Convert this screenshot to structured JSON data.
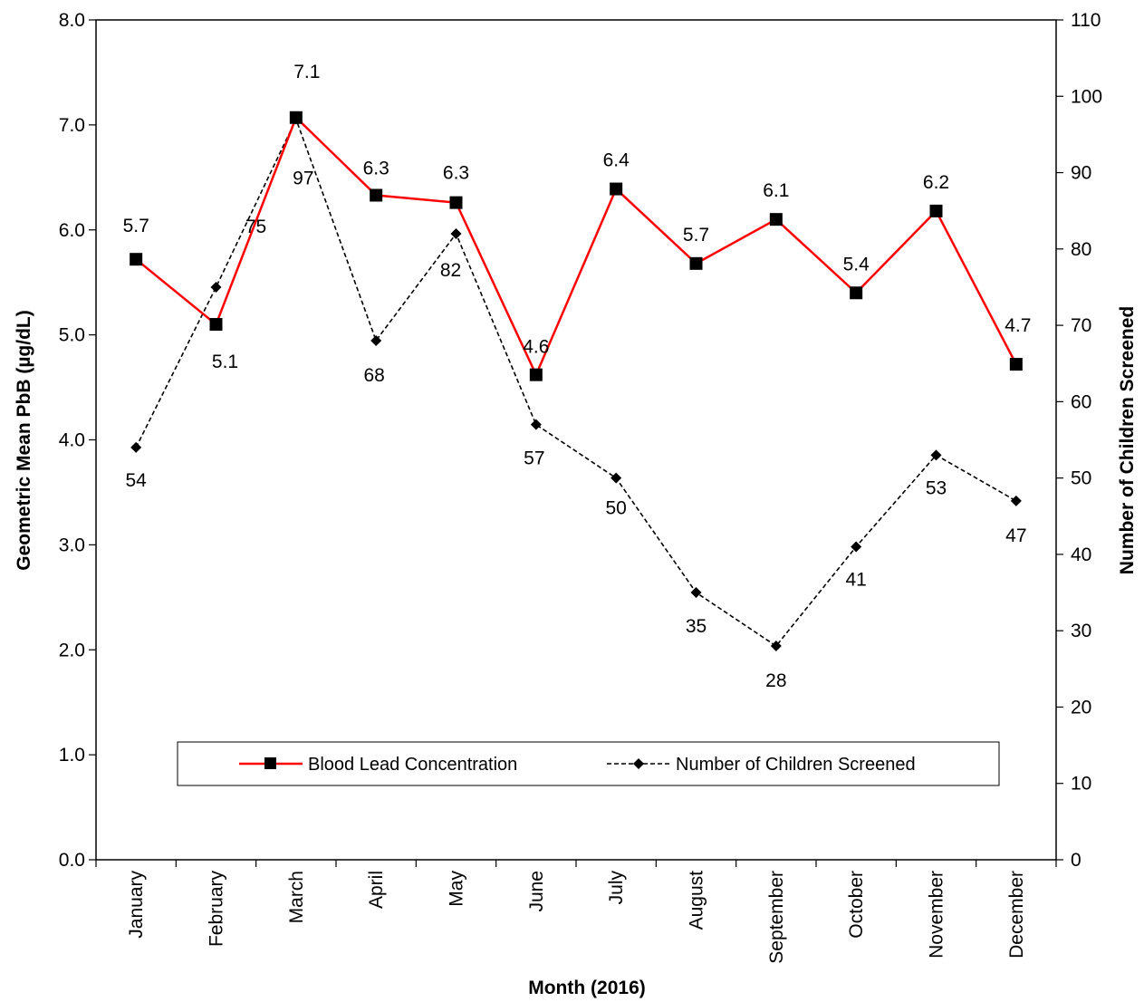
{
  "chart_data": {
    "type": "line",
    "categories": [
      "January",
      "February",
      "March",
      "April",
      "May",
      "June",
      "July",
      "August",
      "September",
      "October",
      "November",
      "December"
    ],
    "xlabel": "Month (2016)",
    "y_left": {
      "label": "Geometric Mean PbB (µg/dL)",
      "lim": [
        0,
        8
      ],
      "ticks": [
        "0.0",
        "1.0",
        "2.0",
        "3.0",
        "4.0",
        "5.0",
        "6.0",
        "7.0",
        "8.0"
      ]
    },
    "y_right": {
      "label": "Number of Children Screened",
      "lim": [
        0,
        110
      ],
      "ticks": [
        "0",
        "10",
        "20",
        "30",
        "40",
        "50",
        "60",
        "70",
        "80",
        "90",
        "100",
        "110"
      ]
    },
    "series": [
      {
        "name": "Blood Lead Concentration",
        "axis": "left",
        "values": [
          5.72,
          5.1,
          7.07,
          6.33,
          6.26,
          4.62,
          6.39,
          5.68,
          6.1,
          5.4,
          6.18,
          4.72
        ],
        "labels": [
          "5.7",
          "5.1",
          "7.1",
          "6.3",
          "6.3",
          "4.6",
          "6.4",
          "5.7",
          "6.1",
          "5.4",
          "6.2",
          "4.7"
        ],
        "color": "#ff0000",
        "line_style": "solid",
        "marker": "square"
      },
      {
        "name": "Number of Children Screened",
        "axis": "right",
        "values": [
          54,
          75,
          97,
          68,
          82,
          57,
          50,
          35,
          28,
          41,
          53,
          47
        ],
        "labels": [
          "54",
          "75",
          "97",
          "68",
          "82",
          "57",
          "50",
          "35",
          "28",
          "41",
          "53",
          "47"
        ],
        "color": "#000000",
        "line_style": "dashed",
        "marker": "diamond"
      }
    ],
    "grid": false,
    "legend_position": "bottom-center"
  }
}
